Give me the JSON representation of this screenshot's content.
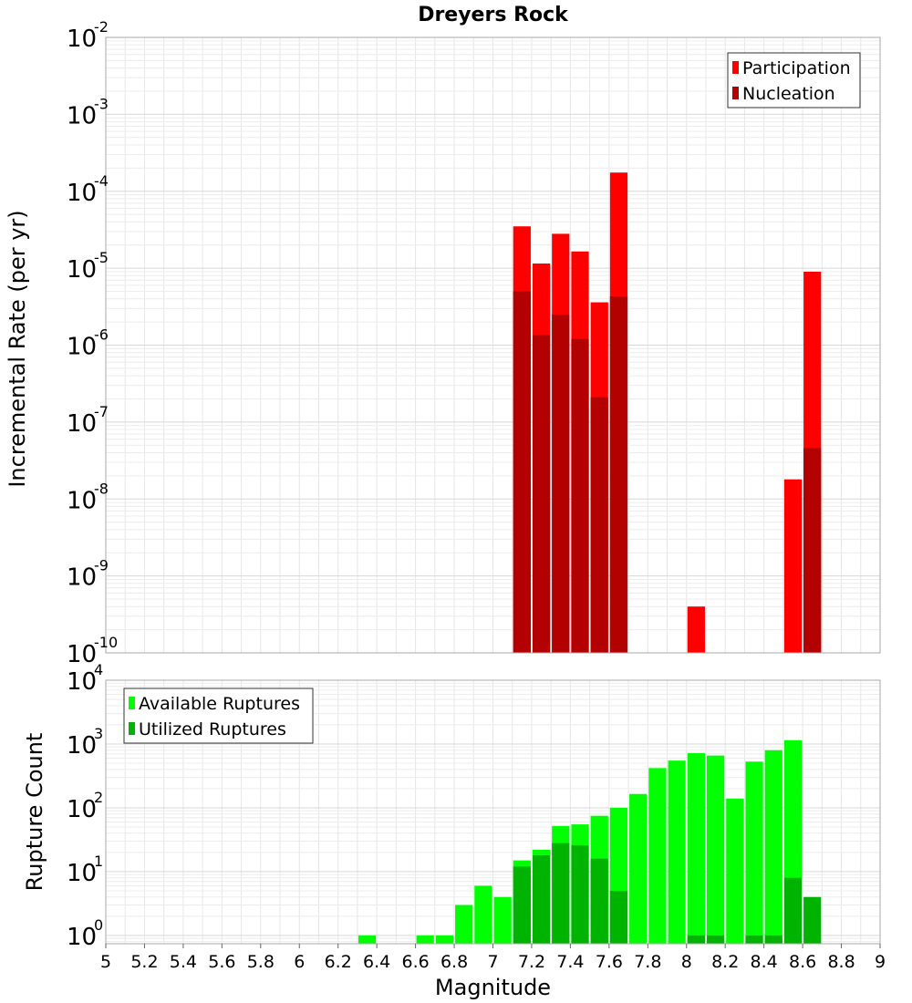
{
  "chart_data": [
    {
      "type": "bar",
      "title": "Dreyers Rock",
      "xlabel": "Magnitude",
      "ylabel": "Incremental Rate (per yr)",
      "xlim": [
        5,
        9
      ],
      "ylim_log10": [
        -10,
        -2
      ],
      "bin_width": 0.1,
      "y_ticks": [
        {
          "base": "10",
          "exp": "-2"
        },
        {
          "base": "10",
          "exp": "-3"
        },
        {
          "base": "10",
          "exp": "-4"
        },
        {
          "base": "10",
          "exp": "-5"
        },
        {
          "base": "10",
          "exp": "-6"
        },
        {
          "base": "10",
          "exp": "-7"
        },
        {
          "base": "10",
          "exp": "-8"
        },
        {
          "base": "10",
          "exp": "-9"
        },
        {
          "base": "10",
          "exp": "-10"
        }
      ],
      "legend_position": "top-right",
      "series": [
        {
          "name": "Participation",
          "color": "#ff0000",
          "x": [
            7.15,
            7.25,
            7.35,
            7.45,
            7.55,
            7.65,
            8.05,
            8.55,
            8.65
          ],
          "values": [
            3.5e-05,
            1.15e-05,
            2.8e-05,
            1.65e-05,
            3.6e-06,
            0.000175,
            4e-10,
            1.8e-08,
            9e-06
          ]
        },
        {
          "name": "Nucleation",
          "color": "#b30000",
          "x": [
            7.15,
            7.25,
            7.35,
            7.45,
            7.55,
            7.65,
            8.65
          ],
          "values": [
            5e-06,
            1.35e-06,
            2.5e-06,
            1.2e-06,
            2.1e-07,
            4.3e-06,
            4.6e-08
          ]
        }
      ]
    },
    {
      "type": "bar",
      "xlabel": "Magnitude",
      "ylabel": "Rupture Count",
      "xlim": [
        5,
        9
      ],
      "ylim_log10": [
        -0.13,
        4
      ],
      "bin_width": 0.1,
      "x_ticks": [
        "5",
        "5.2",
        "5.4",
        "5.6",
        "5.8",
        "6",
        "6.2",
        "6.4",
        "6.6",
        "6.8",
        "7",
        "7.2",
        "7.4",
        "7.6",
        "7.8",
        "8",
        "8.2",
        "8.4",
        "8.6",
        "8.8",
        "9"
      ],
      "y_ticks": [
        {
          "base": "10",
          "exp": "4"
        },
        {
          "base": "10",
          "exp": "3"
        },
        {
          "base": "10",
          "exp": "2"
        },
        {
          "base": "10",
          "exp": "1"
        },
        {
          "base": "10",
          "exp": "0"
        }
      ],
      "legend_position": "top-left",
      "series": [
        {
          "name": "Available Ruptures",
          "color": "#00ff00",
          "x": [
            6.35,
            6.65,
            6.75,
            6.85,
            6.95,
            7.05,
            7.15,
            7.25,
            7.35,
            7.45,
            7.55,
            7.65,
            7.75,
            7.85,
            7.95,
            8.05,
            8.15,
            8.25,
            8.35,
            8.45,
            8.55
          ],
          "values": [
            1,
            1,
            1,
            3,
            6,
            4,
            15,
            22,
            52,
            55,
            75,
            100,
            165,
            420,
            550,
            720,
            660,
            140,
            530,
            800,
            1150
          ]
        },
        {
          "name": "Utilized Ruptures",
          "color": "#00b300",
          "x": [
            7.15,
            7.25,
            7.35,
            7.45,
            7.55,
            7.65,
            8.05,
            8.15,
            8.35,
            8.45,
            8.55,
            8.65
          ],
          "values": [
            12,
            18,
            28,
            26,
            16,
            5,
            1,
            1,
            1,
            1,
            8,
            4
          ]
        }
      ]
    }
  ]
}
